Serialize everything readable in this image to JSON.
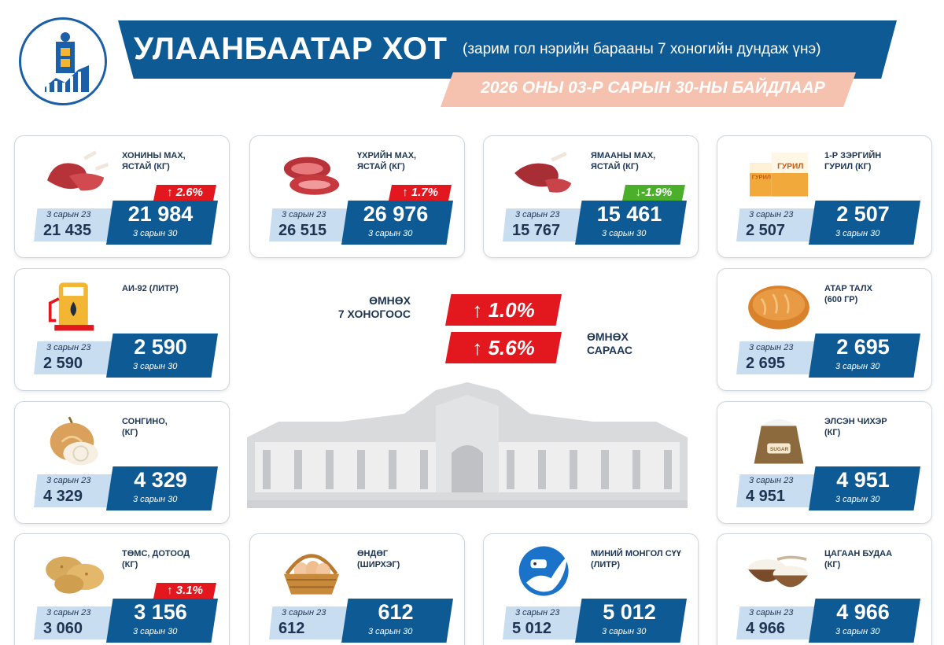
{
  "header": {
    "title": "УЛААНБААТАР ХОТ",
    "subtitle": "(зарим гол нэрийн барааны 7 хоногийн дундаж үнэ)",
    "date": "2026 ОНЫ 03-Р САРЫН 30-НЫ БАЙДЛААР"
  },
  "summary": {
    "week_label": "ӨМНӨХ\n7 ХОНОГООС",
    "week_change": "↑  1.0%",
    "month_label": "ӨМНӨХ\nСАРААС",
    "month_change": "↑  5.6%"
  },
  "colors": {
    "brand_blue": "#0d5a94",
    "light_blue": "#c9ddf0",
    "increase_red": "#e3171e",
    "decrease_green": "#4caf2c",
    "date_banner": "#f5c2b0"
  },
  "items": [
    {
      "name": "ХОНИНЫ МАХ,\nЯСТАЙ (КГ)",
      "icon": "mutton-icon",
      "prev_label": "3 сарын 23",
      "prev": "21 435",
      "cur": "21 984",
      "cur_label": "3 сарын 30",
      "change": "↑ 2.6%",
      "dir": "up"
    },
    {
      "name": "ҮХРИЙН МАХ,\nЯСТАЙ (КГ)",
      "icon": "beef-icon",
      "prev_label": "3 сарын 23",
      "prev": "26 515",
      "cur": "26 976",
      "cur_label": "3 сарын 30",
      "change": "↑ 1.7%",
      "dir": "up"
    },
    {
      "name": "ЯМААНЫ МАХ,\nЯСТАЙ (КГ)",
      "icon": "goat-meat-icon",
      "prev_label": "3 сарын 23",
      "prev": "15 767",
      "cur": "15 461",
      "cur_label": "3 сарын 30",
      "change": "↓-1.9%",
      "dir": "down"
    },
    {
      "name": "1-Р ЗЭРГИЙН\nГУРИЛ (КГ)",
      "icon": "flour-icon",
      "prev_label": "3 сарын 23",
      "prev": "2 507",
      "cur": "2 507",
      "cur_label": "3 сарын 30",
      "change": "",
      "dir": ""
    },
    {
      "name": "АИ-92 (ЛИТР)",
      "icon": "fuel-pump-icon",
      "prev_label": "3 сарын 23",
      "prev": "2 590",
      "cur": "2 590",
      "cur_label": "3 сарын 30",
      "change": "",
      "dir": ""
    },
    {
      "name": "АТАР ТАЛХ\n(600 ГР)",
      "icon": "bread-icon",
      "prev_label": "3 сарын 23",
      "prev": "2 695",
      "cur": "2 695",
      "cur_label": "3 сарын 30",
      "change": "",
      "dir": ""
    },
    {
      "name": "СОНГИНО,\n(КГ)",
      "icon": "onion-icon",
      "prev_label": "3 сарын 23",
      "prev": "4 329",
      "cur": "4 329",
      "cur_label": "3 сарын 30",
      "change": "",
      "dir": ""
    },
    {
      "name": "ЭЛСЭН ЧИХЭР\n(КГ)",
      "icon": "sugar-sack-icon",
      "sack_label": "SUGAR",
      "prev_label": "3 сарын 23",
      "prev": "4 951",
      "cur": "4 951",
      "cur_label": "3 сарын 30",
      "change": "",
      "dir": ""
    },
    {
      "name": "ТӨМС, ДОТООД\n(КГ)",
      "icon": "potato-icon",
      "prev_label": "3 сарын 23",
      "prev": "3 060",
      "cur": "3 156",
      "cur_label": "3 сарын 30",
      "change": "↑ 3.1%",
      "dir": "up"
    },
    {
      "name": "ӨНДӨГ\n(ШИРХЭГ)",
      "icon": "egg-basket-icon",
      "prev_label": "3 сарын 23",
      "prev": "612",
      "cur": "612",
      "cur_label": "3 сарын 30",
      "change": "",
      "dir": ""
    },
    {
      "name": "МИНИЙ МОНГОЛ СҮҮ\n(ЛИТР)",
      "icon": "milk-icon",
      "prev_label": "3 сарын 23",
      "prev": "5 012",
      "cur": "5 012",
      "cur_label": "3 сарын 30",
      "change": "",
      "dir": ""
    },
    {
      "name": "ЦАГААН БУДАА\n(КГ)",
      "icon": "rice-bowl-icon",
      "prev_label": "3 сарын 23",
      "prev": "4 966",
      "cur": "4 966",
      "cur_label": "3 сарын 30",
      "change": "",
      "dir": ""
    }
  ]
}
